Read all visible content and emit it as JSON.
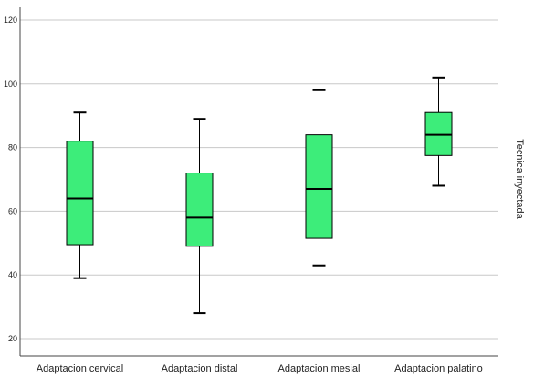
{
  "chart_data": {
    "type": "boxplot",
    "title": "",
    "xlabel": "",
    "ylabel": "",
    "side_label": "Tecnica inyectada",
    "ylim": [
      15,
      125
    ],
    "yticks": [
      20,
      40,
      60,
      80,
      100,
      120
    ],
    "ytick_labels": [
      "20",
      "40",
      "60",
      "80",
      "100",
      "120"
    ],
    "grid": true,
    "box_color": "#3ded7a",
    "categories": [
      "Adaptacion cervical",
      "Adaptacion distal",
      "Adaptacion mesial",
      "Adaptacion palatino"
    ],
    "boxes": [
      {
        "min": 39,
        "q1": 49.5,
        "median": 64,
        "q3": 82,
        "max": 91
      },
      {
        "min": 28,
        "q1": 49,
        "median": 58,
        "q3": 72,
        "max": 89
      },
      {
        "min": 43,
        "q1": 51.5,
        "median": 67,
        "q3": 84,
        "max": 98
      },
      {
        "min": 68,
        "q1": 77.5,
        "median": 84,
        "q3": 91,
        "max": 102
      }
    ]
  }
}
